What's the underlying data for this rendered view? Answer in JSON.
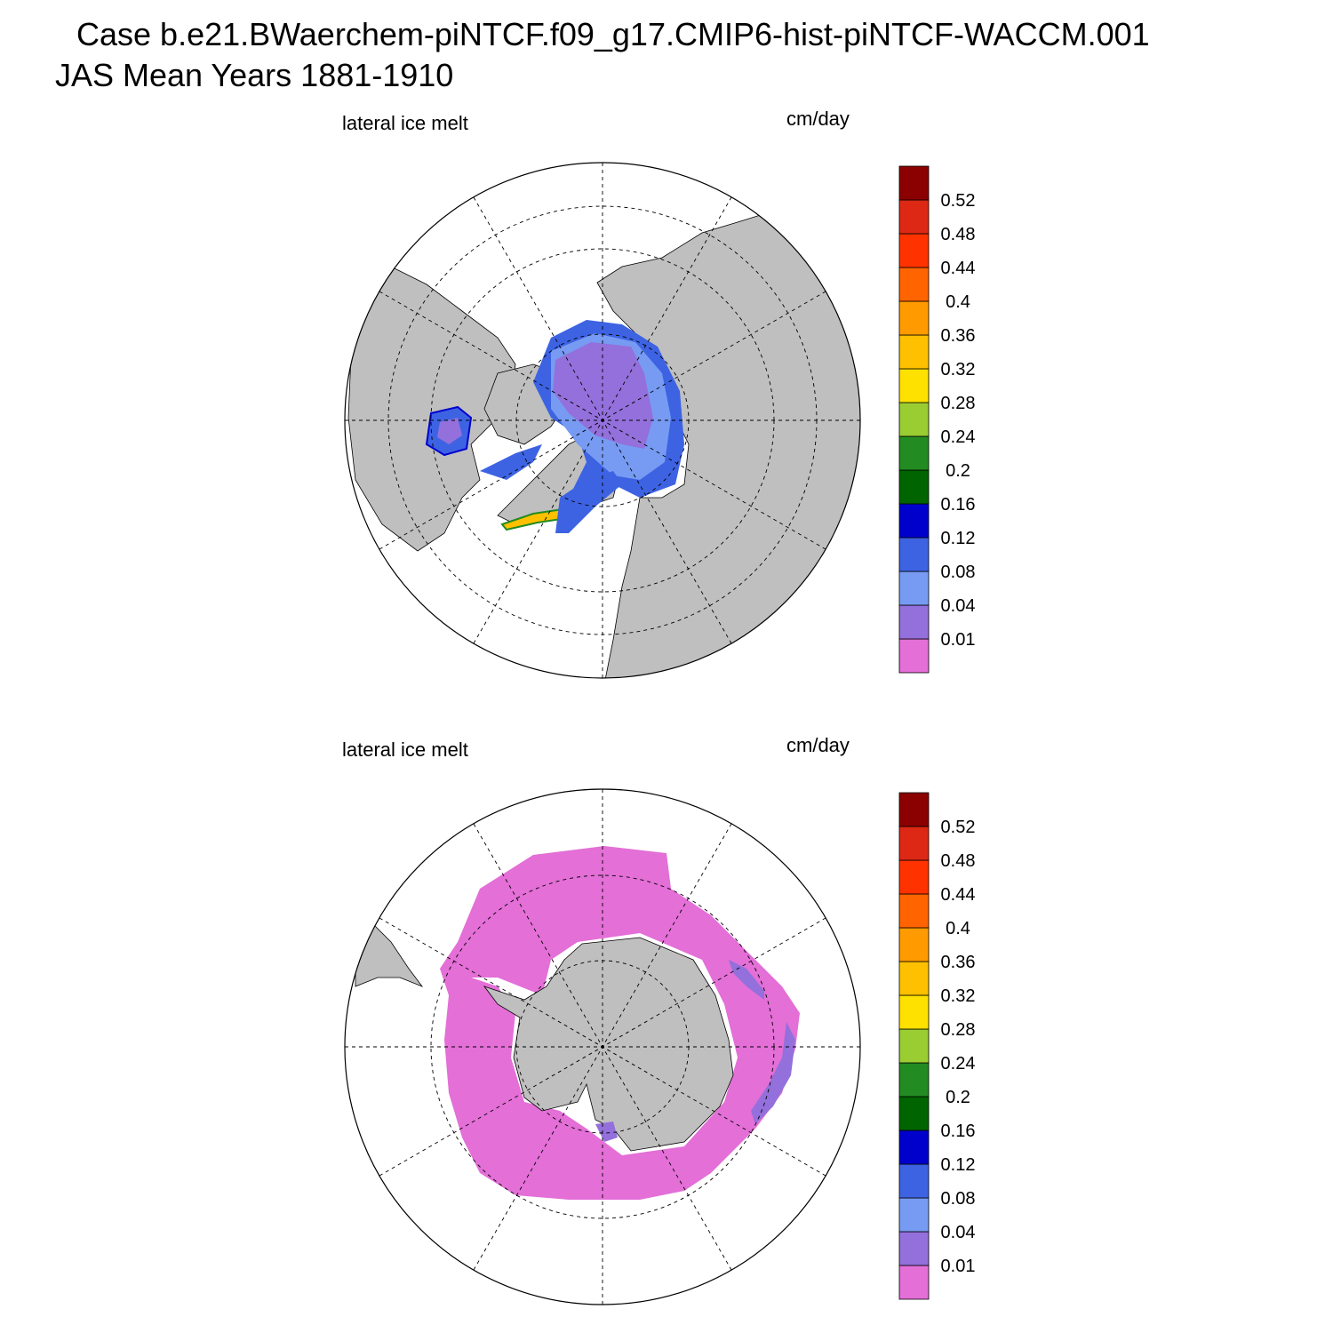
{
  "header": {
    "case_line": "Case b.e21.BWaerchem-piNTCF.f09_g17.CMIP6-hist-piNTCF-WACCM.001",
    "period_line": "JAS Mean   Years 1881-1910"
  },
  "panels": [
    {
      "variable": "lateral ice melt",
      "units": "cm/day",
      "hemisphere": "north"
    },
    {
      "variable": "lateral ice melt",
      "units": "cm/day",
      "hemisphere": "south"
    }
  ],
  "colorbar": {
    "colors": [
      "#e36fd7",
      "#9370db",
      "#779bf2",
      "#3d63e3",
      "#0000cd",
      "#006400",
      "#228b22",
      "#9acd32",
      "#ffe100",
      "#ffc000",
      "#ff9b00",
      "#ff6400",
      "#ff3200",
      "#dc2814",
      "#8b0000"
    ],
    "labels": [
      "0.01",
      "0.04",
      "0.08",
      "0.12",
      "0.16",
      "0.2",
      "0.24",
      "0.28",
      "0.32",
      "0.36",
      "0.4",
      "0.44",
      "0.48",
      "0.52"
    ]
  },
  "colors": {
    "land": "#bfbfbf",
    "ocean": "#ffffff",
    "grid": "#000000"
  }
}
